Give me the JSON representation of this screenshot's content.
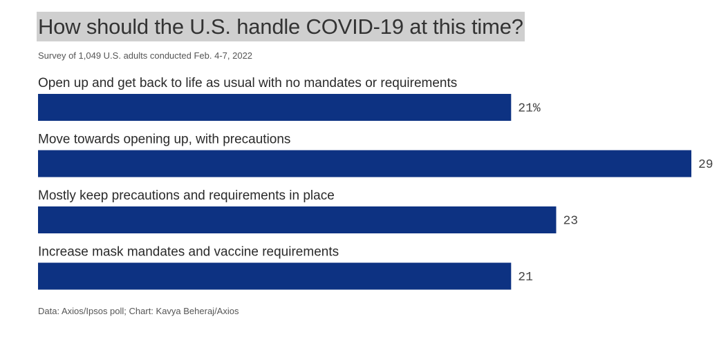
{
  "chart_data": {
    "type": "bar",
    "orientation": "horizontal",
    "title": "How should the U.S. handle COVID-19 at this time?",
    "subtitle": "Survey of 1,049 U.S. adults conducted Feb. 4-7, 2022",
    "source": "Data: Axios/Ipsos poll; Chart: Kavya Beheraj/Axios",
    "categories": [
      "Open up and get back to life as usual with no mandates or requirements",
      "Move towards opening up, with precautions",
      "Mostly keep precautions and requirements in place",
      "Increase mask mandates and vaccine requirements"
    ],
    "values": [
      21,
      29,
      23,
      21
    ],
    "value_labels": [
      "21%",
      "29",
      "23",
      "21"
    ],
    "unit": "%",
    "xlim": [
      0,
      29
    ],
    "grid": false,
    "legend": "none",
    "bar_color": "#0d3282"
  }
}
